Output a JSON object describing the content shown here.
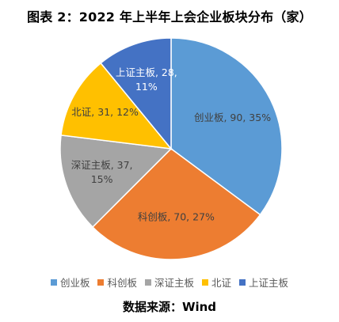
{
  "chart_data": {
    "type": "pie",
    "title": "图表 2：2022 年上半年上会企业板块分布（家）",
    "slices": [
      {
        "name": "创业板",
        "value": 90,
        "percent": "35%",
        "color": "#5B9BD5",
        "label_line1": "创业板, 90, 35%",
        "label_line2": ""
      },
      {
        "name": "科创板",
        "value": 70,
        "percent": "27%",
        "color": "#ED7D31",
        "label_line1": "科创板, 70, 27%",
        "label_line2": ""
      },
      {
        "name": "深证主板",
        "value": 37,
        "percent": "15%",
        "color": "#A5A5A5",
        "label_line1": "深证主板, 37,",
        "label_line2": "15%"
      },
      {
        "name": "北证",
        "value": 31,
        "percent": "12%",
        "color": "#FFC000",
        "label_line1": "北证, 31, 12%",
        "label_line2": ""
      },
      {
        "name": "上证主板",
        "value": 28,
        "percent": "11%",
        "color": "#4472C4",
        "label_line1": "上证主板, 28,",
        "label_line2": "11%"
      }
    ],
    "legend_position": "bottom"
  },
  "source": "数据来源：Wind"
}
